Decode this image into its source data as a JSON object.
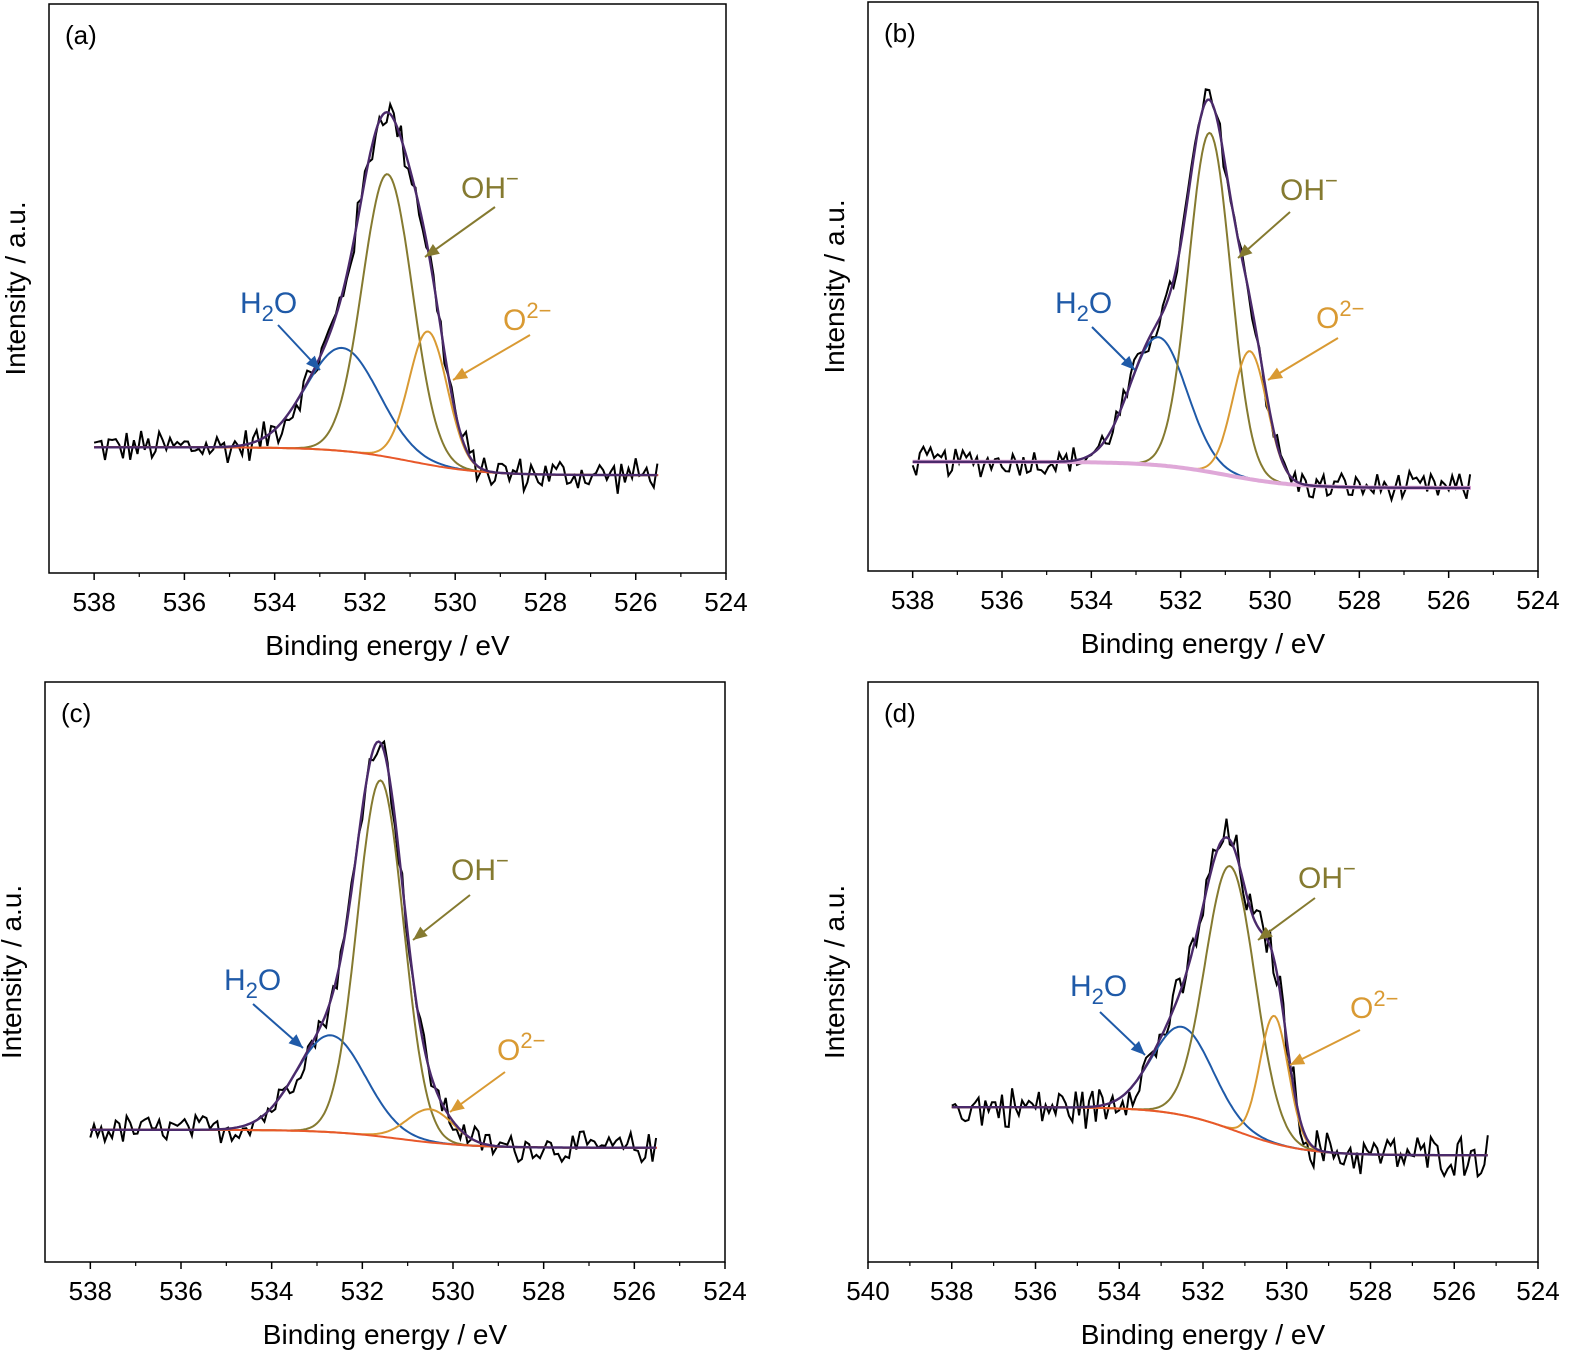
{
  "colors": {
    "raw": "#000000",
    "envelope": "#4b2a6b",
    "H2O": "#1f5aa8",
    "OH": "#857a30",
    "O2": "#d99a33",
    "background": "#e8582a",
    "background_b": "#dfa8d8"
  },
  "chart_data": [
    {
      "type": "line",
      "panel_label": "(a)",
      "xlabel": "Binding energy / eV",
      "ylabel": "Intensity / a.u.",
      "xlim": [
        539,
        524
      ],
      "ylim": [
        0,
        100
      ],
      "x_reversed": true,
      "grid": false,
      "xticks": [
        538,
        536,
        534,
        532,
        530,
        528,
        526,
        524
      ],
      "raw_range": [
        538,
        525.5
      ],
      "background": {
        "left": 22.1,
        "right": 17.2,
        "center": 531.0,
        "width": 0.8,
        "color_key": "background"
      },
      "components": [
        {
          "key": "H2O",
          "label": [
            {
              "t": "H"
            },
            {
              "t": "2",
              "sub": true
            },
            {
              "t": "O"
            }
          ],
          "center": 532.5,
          "fwhm": 1.9,
          "height": 18.1
        },
        {
          "key": "OH",
          "label": [
            {
              "t": "OH"
            },
            {
              "t": "−",
              "sup": true
            }
          ],
          "center": 531.5,
          "fwhm": 1.3,
          "height": 49.7
        },
        {
          "key": "O2",
          "label": [
            {
              "t": "O"
            },
            {
              "t": "2−",
              "sup": true
            }
          ],
          "center": 530.6,
          "fwhm": 1.0,
          "height": 23.4
        }
      ]
    },
    {
      "type": "line",
      "panel_label": "(b)",
      "xlabel": "Binding energy / eV",
      "ylabel": "Intensity / a.u.",
      "xlim": [
        539,
        524
      ],
      "ylim": [
        0,
        100
      ],
      "x_reversed": true,
      "grid": false,
      "xticks": [
        538,
        536,
        534,
        532,
        530,
        528,
        526,
        524
      ],
      "raw_range": [
        538,
        525.5
      ],
      "background": {
        "left": 19.2,
        "right": 14.6,
        "center": 531.0,
        "width": 0.8,
        "color_key": "background_b"
      },
      "components": [
        {
          "key": "H2O",
          "label": [
            {
              "t": "H"
            },
            {
              "t": "2",
              "sub": true
            },
            {
              "t": "O"
            }
          ],
          "center": 532.5,
          "fwhm": 1.5,
          "height": 22.5
        },
        {
          "key": "OH",
          "label": [
            {
              "t": "OH"
            },
            {
              "t": "−",
              "sup": true
            }
          ],
          "center": 531.35,
          "fwhm": 1.1,
          "height": 59.6
        },
        {
          "key": "O2",
          "label": [
            {
              "t": "O"
            },
            {
              "t": "2−",
              "sup": true
            }
          ],
          "center": 530.45,
          "fwhm": 0.9,
          "height": 22.5
        }
      ]
    },
    {
      "type": "line",
      "panel_label": "(c)",
      "xlabel": "Binding energy / eV",
      "ylabel": "Intensity / a.u.",
      "xlim": [
        539,
        524
      ],
      "ylim": [
        0,
        100
      ],
      "x_reversed": true,
      "grid": false,
      "xticks": [
        538,
        536,
        534,
        532,
        530,
        528,
        526,
        524
      ],
      "raw_range": [
        538,
        525.5
      ],
      "background": {
        "left": 22.8,
        "right": 19.7,
        "center": 531.2,
        "width": 0.8,
        "color_key": "background"
      },
      "components": [
        {
          "key": "H2O",
          "label": [
            {
              "t": "H"
            },
            {
              "t": "2",
              "sub": true
            },
            {
              "t": "O"
            }
          ],
          "center": 532.7,
          "fwhm": 1.8,
          "height": 16.7
        },
        {
          "key": "OH",
          "label": [
            {
              "t": "OH"
            },
            {
              "t": "−",
              "sup": true
            }
          ],
          "center": 531.6,
          "fwhm": 1.2,
          "height": 61.4
        },
        {
          "key": "O2",
          "label": [
            {
              "t": "O"
            },
            {
              "t": "2−",
              "sup": true
            }
          ],
          "center": 530.5,
          "fwhm": 1.2,
          "height": 5.7
        }
      ]
    },
    {
      "type": "line",
      "panel_label": "(d)",
      "xlabel": "Binding energy / eV",
      "ylabel": "Intensity / a.u.",
      "xlim": [
        540,
        524
      ],
      "ylim": [
        0,
        100
      ],
      "x_reversed": true,
      "grid": false,
      "xticks": [
        540,
        538,
        536,
        534,
        532,
        530,
        528,
        526,
        524
      ],
      "raw_range": [
        538,
        525.2
      ],
      "background": {
        "left": 26.7,
        "right": 18.4,
        "center": 531.2,
        "width": 0.8,
        "color_key": "background"
      },
      "components": [
        {
          "key": "H2O",
          "label": [
            {
              "t": "H"
            },
            {
              "t": "2",
              "sub": true
            },
            {
              "t": "O"
            }
          ],
          "center": 532.5,
          "fwhm": 1.7,
          "height": 15.2
        },
        {
          "key": "OH",
          "label": [
            {
              "t": "OH"
            },
            {
              "t": "−",
              "sup": true
            }
          ],
          "center": 531.35,
          "fwhm": 1.4,
          "height": 45.3
        },
        {
          "key": "O2",
          "label": [
            {
              "t": "O"
            },
            {
              "t": "2−",
              "sup": true
            }
          ],
          "center": 530.3,
          "fwhm": 0.8,
          "height": 22.0
        }
      ]
    }
  ]
}
